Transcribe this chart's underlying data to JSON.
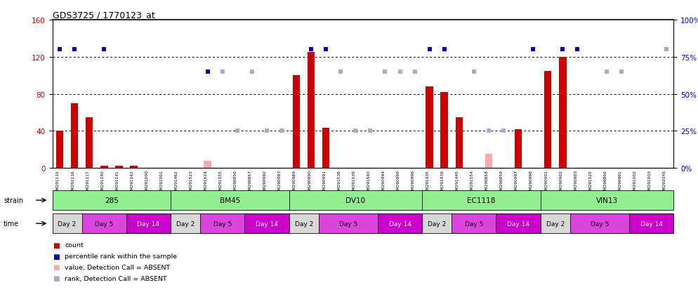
{
  "title": "GDS3725 / 1770123_at",
  "samples": [
    "GSM291115",
    "GSM291116",
    "GSM291117",
    "GSM291140",
    "GSM291141",
    "GSM291142",
    "GSM291000",
    "GSM291001",
    "GSM291462",
    "GSM291523",
    "GSM291524",
    "GSM291555",
    "GSM296856",
    "GSM296857",
    "GSM290992",
    "GSM290993",
    "GSM290989",
    "GSM290990",
    "GSM290991",
    "GSM291538",
    "GSM291539",
    "GSM291540",
    "GSM290994",
    "GSM290995",
    "GSM290996",
    "GSM291435",
    "GSM291439",
    "GSM291445",
    "GSM291554",
    "GSM296858",
    "GSM296859",
    "GSM290997",
    "GSM290998",
    "GSM290901",
    "GSM290902",
    "GSM290903",
    "GSM291525",
    "GSM296860",
    "GSM296861",
    "GSM291002",
    "GSM291003",
    "GSM292045"
  ],
  "count_values": [
    40,
    70,
    55,
    2,
    2,
    2,
    0,
    0,
    0,
    0,
    8,
    0,
    0,
    0,
    0,
    0,
    100,
    125,
    43,
    0,
    0,
    0,
    0,
    0,
    0,
    88,
    82,
    55,
    0,
    15,
    0,
    42,
    0,
    105,
    120,
    0,
    0,
    0,
    0,
    0,
    0,
    0
  ],
  "count_absent": [
    false,
    false,
    false,
    false,
    false,
    false,
    false,
    false,
    false,
    false,
    true,
    false,
    false,
    false,
    false,
    false,
    false,
    false,
    false,
    true,
    true,
    true,
    true,
    true,
    true,
    false,
    false,
    false,
    true,
    true,
    false,
    false,
    true,
    false,
    false,
    false,
    false,
    true,
    false,
    false,
    true,
    true
  ],
  "rank_values": [
    80,
    80,
    0,
    80,
    0,
    0,
    0,
    0,
    0,
    0,
    65,
    65,
    25,
    65,
    25,
    25,
    0,
    80,
    80,
    65,
    25,
    25,
    65,
    65,
    65,
    80,
    80,
    0,
    65,
    25,
    25,
    0,
    80,
    0,
    80,
    80,
    0,
    65,
    65,
    0,
    0,
    80
  ],
  "rank_absent": [
    false,
    false,
    false,
    false,
    false,
    false,
    false,
    false,
    false,
    false,
    false,
    true,
    true,
    true,
    true,
    true,
    false,
    false,
    false,
    true,
    true,
    true,
    true,
    true,
    true,
    false,
    false,
    false,
    true,
    true,
    true,
    false,
    false,
    false,
    false,
    false,
    false,
    true,
    true,
    false,
    false,
    true
  ],
  "strains": [
    {
      "label": "285",
      "start": 0,
      "end": 7
    },
    {
      "label": "BM45",
      "start": 8,
      "end": 15
    },
    {
      "label": "DV10",
      "start": 16,
      "end": 24
    },
    {
      "label": "EC1118",
      "start": 25,
      "end": 32
    },
    {
      "label": "VIN13",
      "start": 33,
      "end": 41
    }
  ],
  "time_groups": [
    {
      "label": "Day 2",
      "start": 0,
      "end": 1
    },
    {
      "label": "Day 5",
      "start": 2,
      "end": 4
    },
    {
      "label": "Day 14",
      "start": 5,
      "end": 7
    },
    {
      "label": "Day 2",
      "start": 8,
      "end": 9
    },
    {
      "label": "Day 5",
      "start": 10,
      "end": 12
    },
    {
      "label": "Day 14",
      "start": 13,
      "end": 15
    },
    {
      "label": "Day 2",
      "start": 16,
      "end": 17
    },
    {
      "label": "Day 5",
      "start": 18,
      "end": 21
    },
    {
      "label": "Day 14",
      "start": 22,
      "end": 24
    },
    {
      "label": "Day 2",
      "start": 25,
      "end": 26
    },
    {
      "label": "Day 5",
      "start": 27,
      "end": 29
    },
    {
      "label": "Day 14",
      "start": 30,
      "end": 32
    },
    {
      "label": "Day 2",
      "start": 33,
      "end": 34
    },
    {
      "label": "Day 5",
      "start": 35,
      "end": 38
    },
    {
      "label": "Day 14",
      "start": 39,
      "end": 41
    }
  ],
  "ylim_left": [
    0,
    160
  ],
  "ylim_right": [
    0,
    100
  ],
  "yticks_left": [
    0,
    40,
    80,
    120,
    160
  ],
  "yticks_right": [
    0,
    25,
    50,
    75,
    100
  ],
  "bar_color_present": "#cc0000",
  "bar_color_absent": "#ffaaaa",
  "rank_color_present": "#0000bb",
  "rank_color_absent": "#aaaacc",
  "strain_bg": "#90ee90",
  "time_color_day2": "#d8d8d8",
  "time_color_day5": "#dd44dd",
  "time_color_day14": "#cc00cc",
  "legend_items": [
    {
      "label": "count",
      "color": "#cc0000"
    },
    {
      "label": "percentile rank within the sample",
      "color": "#0000bb"
    },
    {
      "label": "value, Detection Call = ABSENT",
      "color": "#ffaaaa"
    },
    {
      "label": "rank, Detection Call = ABSENT",
      "color": "#aaaacc"
    }
  ]
}
